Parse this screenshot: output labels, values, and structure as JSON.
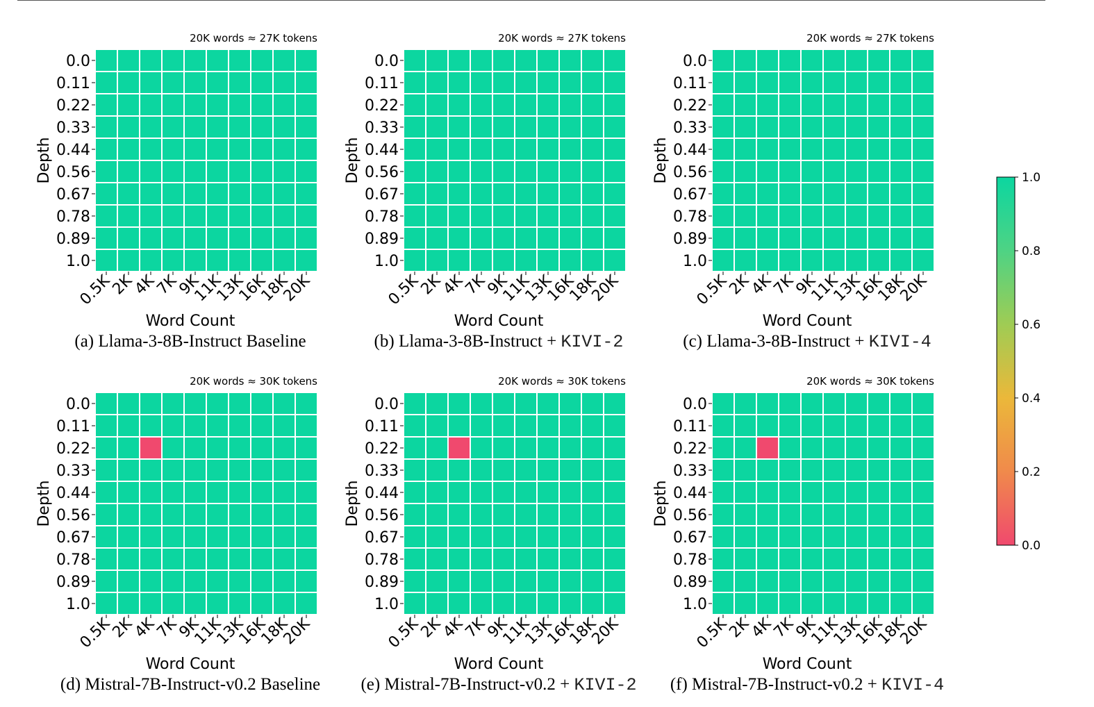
{
  "chart_data": [
    {
      "type": "heatmap",
      "caption": "(a) Llama-3-8B-Instruct Baseline",
      "caption_prefix": "(a) Llama-3-8B-Instruct Baseline",
      "caption_method": "",
      "annotation": "20K words ≈ 27K tokens",
      "xlabel": "Word Count",
      "ylabel": "Depth",
      "x": [
        "0.5K",
        "2K",
        "4K",
        "7K",
        "9K",
        "11K",
        "13K",
        "16K",
        "18K",
        "20K"
      ],
      "y": [
        "0.0",
        "0.11",
        "0.22",
        "0.33",
        "0.44",
        "0.56",
        "0.67",
        "0.78",
        "0.89",
        "1.0"
      ],
      "values": [
        [
          1,
          1,
          1,
          1,
          1,
          1,
          1,
          1,
          1,
          1
        ],
        [
          1,
          1,
          1,
          1,
          1,
          1,
          1,
          1,
          1,
          1
        ],
        [
          1,
          1,
          1,
          1,
          1,
          1,
          1,
          1,
          1,
          1
        ],
        [
          1,
          1,
          1,
          1,
          1,
          1,
          1,
          1,
          1,
          1
        ],
        [
          1,
          1,
          1,
          1,
          1,
          1,
          1,
          1,
          1,
          1
        ],
        [
          1,
          1,
          1,
          1,
          1,
          1,
          1,
          1,
          1,
          1
        ],
        [
          1,
          1,
          1,
          1,
          1,
          1,
          1,
          1,
          1,
          1
        ],
        [
          1,
          1,
          1,
          1,
          1,
          1,
          1,
          1,
          1,
          1
        ],
        [
          1,
          1,
          1,
          1,
          1,
          1,
          1,
          1,
          1,
          1
        ],
        [
          1,
          1,
          1,
          1,
          1,
          1,
          1,
          1,
          1,
          1
        ]
      ]
    },
    {
      "type": "heatmap",
      "caption": "(b) Llama-3-8B-Instruct + KIVI-2",
      "caption_prefix": "(b) Llama-3-8B-Instruct + ",
      "caption_method": "KIVI-2",
      "annotation": "20K words ≈ 27K tokens",
      "xlabel": "Word Count",
      "ylabel": "Depth",
      "x": [
        "0.5K",
        "2K",
        "4K",
        "7K",
        "9K",
        "11K",
        "13K",
        "16K",
        "18K",
        "20K"
      ],
      "y": [
        "0.0",
        "0.11",
        "0.22",
        "0.33",
        "0.44",
        "0.56",
        "0.67",
        "0.78",
        "0.89",
        "1.0"
      ],
      "values": [
        [
          1,
          1,
          1,
          1,
          1,
          1,
          1,
          1,
          1,
          1
        ],
        [
          1,
          1,
          1,
          1,
          1,
          1,
          1,
          1,
          1,
          1
        ],
        [
          1,
          1,
          1,
          1,
          1,
          1,
          1,
          1,
          1,
          1
        ],
        [
          1,
          1,
          1,
          1,
          1,
          1,
          1,
          1,
          1,
          1
        ],
        [
          1,
          1,
          1,
          1,
          1,
          1,
          1,
          1,
          1,
          1
        ],
        [
          1,
          1,
          1,
          1,
          1,
          1,
          1,
          1,
          1,
          1
        ],
        [
          1,
          1,
          1,
          1,
          1,
          1,
          1,
          1,
          1,
          1
        ],
        [
          1,
          1,
          1,
          1,
          1,
          1,
          1,
          1,
          1,
          1
        ],
        [
          1,
          1,
          1,
          1,
          1,
          1,
          1,
          1,
          1,
          1
        ],
        [
          1,
          1,
          1,
          1,
          1,
          1,
          1,
          1,
          1,
          1
        ]
      ]
    },
    {
      "type": "heatmap",
      "caption": "(c) Llama-3-8B-Instruct + KIVI-4",
      "caption_prefix": "(c) Llama-3-8B-Instruct + ",
      "caption_method": "KIVI-4",
      "annotation": "20K words ≈ 27K tokens",
      "xlabel": "Word Count",
      "ylabel": "Depth",
      "x": [
        "0.5K",
        "2K",
        "4K",
        "7K",
        "9K",
        "11K",
        "13K",
        "16K",
        "18K",
        "20K"
      ],
      "y": [
        "0.0",
        "0.11",
        "0.22",
        "0.33",
        "0.44",
        "0.56",
        "0.67",
        "0.78",
        "0.89",
        "1.0"
      ],
      "values": [
        [
          1,
          1,
          1,
          1,
          1,
          1,
          1,
          1,
          1,
          1
        ],
        [
          1,
          1,
          1,
          1,
          1,
          1,
          1,
          1,
          1,
          1
        ],
        [
          1,
          1,
          1,
          1,
          1,
          1,
          1,
          1,
          1,
          1
        ],
        [
          1,
          1,
          1,
          1,
          1,
          1,
          1,
          1,
          1,
          1
        ],
        [
          1,
          1,
          1,
          1,
          1,
          1,
          1,
          1,
          1,
          1
        ],
        [
          1,
          1,
          1,
          1,
          1,
          1,
          1,
          1,
          1,
          1
        ],
        [
          1,
          1,
          1,
          1,
          1,
          1,
          1,
          1,
          1,
          1
        ],
        [
          1,
          1,
          1,
          1,
          1,
          1,
          1,
          1,
          1,
          1
        ],
        [
          1,
          1,
          1,
          1,
          1,
          1,
          1,
          1,
          1,
          1
        ],
        [
          1,
          1,
          1,
          1,
          1,
          1,
          1,
          1,
          1,
          1
        ]
      ]
    },
    {
      "type": "heatmap",
      "caption": "(d) Mistral-7B-Instruct-v0.2 Baseline",
      "caption_prefix": "(d) Mistral-7B-Instruct-v0.2 Baseline",
      "caption_method": "",
      "annotation": "20K words ≈ 30K tokens",
      "xlabel": "Word Count",
      "ylabel": "Depth",
      "x": [
        "0.5K",
        "2K",
        "4K",
        "7K",
        "9K",
        "11K",
        "13K",
        "16K",
        "18K",
        "20K"
      ],
      "y": [
        "0.0",
        "0.11",
        "0.22",
        "0.33",
        "0.44",
        "0.56",
        "0.67",
        "0.78",
        "0.89",
        "1.0"
      ],
      "values": [
        [
          1,
          1,
          1,
          1,
          1,
          1,
          1,
          1,
          1,
          1
        ],
        [
          1,
          1,
          1,
          1,
          1,
          1,
          1,
          1,
          1,
          1
        ],
        [
          1,
          1,
          0,
          1,
          1,
          1,
          1,
          1,
          1,
          1
        ],
        [
          1,
          1,
          1,
          1,
          1,
          1,
          1,
          1,
          1,
          1
        ],
        [
          1,
          1,
          1,
          1,
          1,
          1,
          1,
          1,
          1,
          1
        ],
        [
          1,
          1,
          1,
          1,
          1,
          1,
          1,
          1,
          1,
          1
        ],
        [
          1,
          1,
          1,
          1,
          1,
          1,
          1,
          1,
          1,
          1
        ],
        [
          1,
          1,
          1,
          1,
          1,
          1,
          1,
          1,
          1,
          1
        ],
        [
          1,
          1,
          1,
          1,
          1,
          1,
          1,
          1,
          1,
          1
        ],
        [
          1,
          1,
          1,
          1,
          1,
          1,
          1,
          1,
          1,
          1
        ]
      ]
    },
    {
      "type": "heatmap",
      "caption": "(e) Mistral-7B-Instruct-v0.2 + KIVI-2",
      "caption_prefix": "(e) Mistral-7B-Instruct-v0.2 + ",
      "caption_method": "KIVI-2",
      "annotation": "20K words ≈ 30K tokens",
      "xlabel": "Word Count",
      "ylabel": "Depth",
      "x": [
        "0.5K",
        "2K",
        "4K",
        "7K",
        "9K",
        "11K",
        "13K",
        "16K",
        "18K",
        "20K"
      ],
      "y": [
        "0.0",
        "0.11",
        "0.22",
        "0.33",
        "0.44",
        "0.56",
        "0.67",
        "0.78",
        "0.89",
        "1.0"
      ],
      "values": [
        [
          1,
          1,
          1,
          1,
          1,
          1,
          1,
          1,
          1,
          1
        ],
        [
          1,
          1,
          1,
          1,
          1,
          1,
          1,
          1,
          1,
          1
        ],
        [
          1,
          1,
          0,
          1,
          1,
          1,
          1,
          1,
          1,
          1
        ],
        [
          1,
          1,
          1,
          1,
          1,
          1,
          1,
          1,
          1,
          1
        ],
        [
          1,
          1,
          1,
          1,
          1,
          1,
          1,
          1,
          1,
          1
        ],
        [
          1,
          1,
          1,
          1,
          1,
          1,
          1,
          1,
          1,
          1
        ],
        [
          1,
          1,
          1,
          1,
          1,
          1,
          1,
          1,
          1,
          1
        ],
        [
          1,
          1,
          1,
          1,
          1,
          1,
          1,
          1,
          1,
          1
        ],
        [
          1,
          1,
          1,
          1,
          1,
          1,
          1,
          1,
          1,
          1
        ],
        [
          1,
          1,
          1,
          1,
          1,
          1,
          1,
          1,
          1,
          1
        ]
      ]
    },
    {
      "type": "heatmap",
      "caption": "(f) Mistral-7B-Instruct-v0.2 + KIVI-4",
      "caption_prefix": "(f) Mistral-7B-Instruct-v0.2 + ",
      "caption_method": "KIVI-4",
      "annotation": "20K words ≈ 30K tokens",
      "xlabel": "Word Count",
      "ylabel": "Depth",
      "x": [
        "0.5K",
        "2K",
        "4K",
        "7K",
        "9K",
        "11K",
        "13K",
        "16K",
        "18K",
        "20K"
      ],
      "y": [
        "0.0",
        "0.11",
        "0.22",
        "0.33",
        "0.44",
        "0.56",
        "0.67",
        "0.78",
        "0.89",
        "1.0"
      ],
      "values": [
        [
          1,
          1,
          1,
          1,
          1,
          1,
          1,
          1,
          1,
          1
        ],
        [
          1,
          1,
          1,
          1,
          1,
          1,
          1,
          1,
          1,
          1
        ],
        [
          1,
          1,
          0,
          1,
          1,
          1,
          1,
          1,
          1,
          1
        ],
        [
          1,
          1,
          1,
          1,
          1,
          1,
          1,
          1,
          1,
          1
        ],
        [
          1,
          1,
          1,
          1,
          1,
          1,
          1,
          1,
          1,
          1
        ],
        [
          1,
          1,
          1,
          1,
          1,
          1,
          1,
          1,
          1,
          1
        ],
        [
          1,
          1,
          1,
          1,
          1,
          1,
          1,
          1,
          1,
          1
        ],
        [
          1,
          1,
          1,
          1,
          1,
          1,
          1,
          1,
          1,
          1
        ],
        [
          1,
          1,
          1,
          1,
          1,
          1,
          1,
          1,
          1,
          1
        ],
        [
          1,
          1,
          1,
          1,
          1,
          1,
          1,
          1,
          1,
          1
        ]
      ]
    }
  ],
  "colorbar": {
    "ticks": [
      "0.0",
      "0.2",
      "0.4",
      "0.6",
      "0.8",
      "1.0"
    ],
    "range": [
      0,
      1
    ],
    "colors": [
      "#f0496e",
      "#f08a4b",
      "#ebb83a",
      "#9fcc54",
      "#4ed384",
      "#0cd6a0"
    ]
  },
  "colors": {
    "high": "#0cd6a0",
    "low": "#f0496e",
    "grid": "#ffffff"
  }
}
